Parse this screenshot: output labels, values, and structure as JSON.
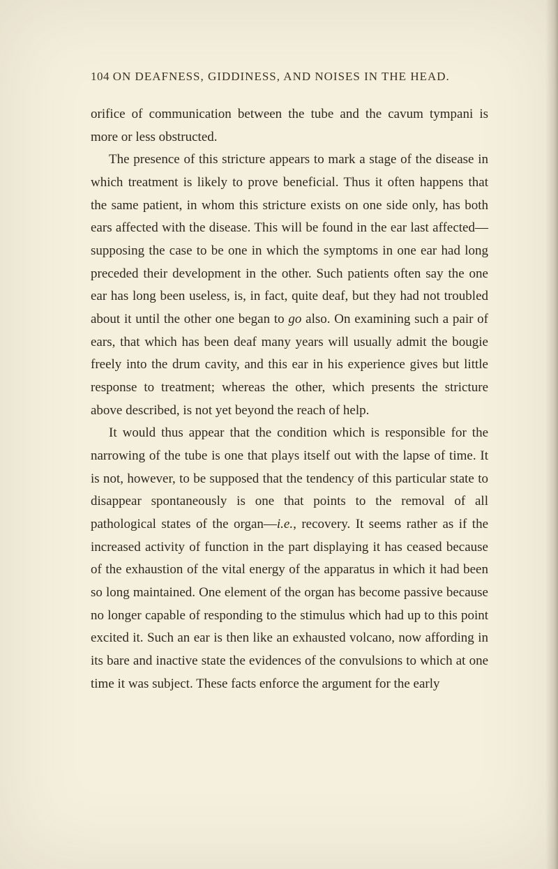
{
  "page_header": {
    "page_number": "104",
    "running_title": "ON DEAFNESS, GIDDINESS, AND NOISES IN THE HEAD."
  },
  "paragraphs": {
    "p1": "orifice of communication between the tube and the cavum tympani is more or less obstructed.",
    "p2_part1": "The presence of this stricture appears to mark a stage of the disease in which treatment is likely to prove beneficial. Thus it often happens that the same patient, in whom this stricture exists on one side only, has both ears affected with the disease. This will be found in the ear last affected— supposing the case to be one in which the symptoms in one ear had long preceded their development in the other. Such patients often say the one ear has long been useless, is, in fact, quite deaf, but they had not troubled about it until the other one began to ",
    "p2_italic1": "go",
    "p2_part2": " also. On examining such a pair of ears, that which has been deaf many years will usually admit the bougie freely into the drum cavity, and this ear in his experience gives but little response to treatment; whereas the other, which presents the stricture above described, is not yet beyond the reach of help.",
    "p3_part1": "It would thus appear that the condition which is responsible for the narrowing of the tube is one that plays itself out with the lapse of time. It is not, however, to be supposed that the tendency of this particular state to disappear spontaneously is one that points to the removal of all pathological states of the organ—",
    "p3_italic1": "i.e.",
    "p3_part2": ", recovery. It seems rather as if the increased activity of function in the part displaying it has ceased because of the exhaustion of the vital energy of the apparatus in which it had been so long maintained. One element of the organ has become passive because no longer capable of responding to the stimulus which had up to this point excited it. Such an ear is then like an exhausted volcano, now affording in its bare and inactive state the evidences of the convulsions to which at one time it was subject. These facts enforce the argument for the early"
  },
  "styling": {
    "background_color": "#f5f0de",
    "text_color": "#2e281e",
    "header_font_size": 17,
    "body_font_size": 19,
    "line_height": 1.72
  }
}
